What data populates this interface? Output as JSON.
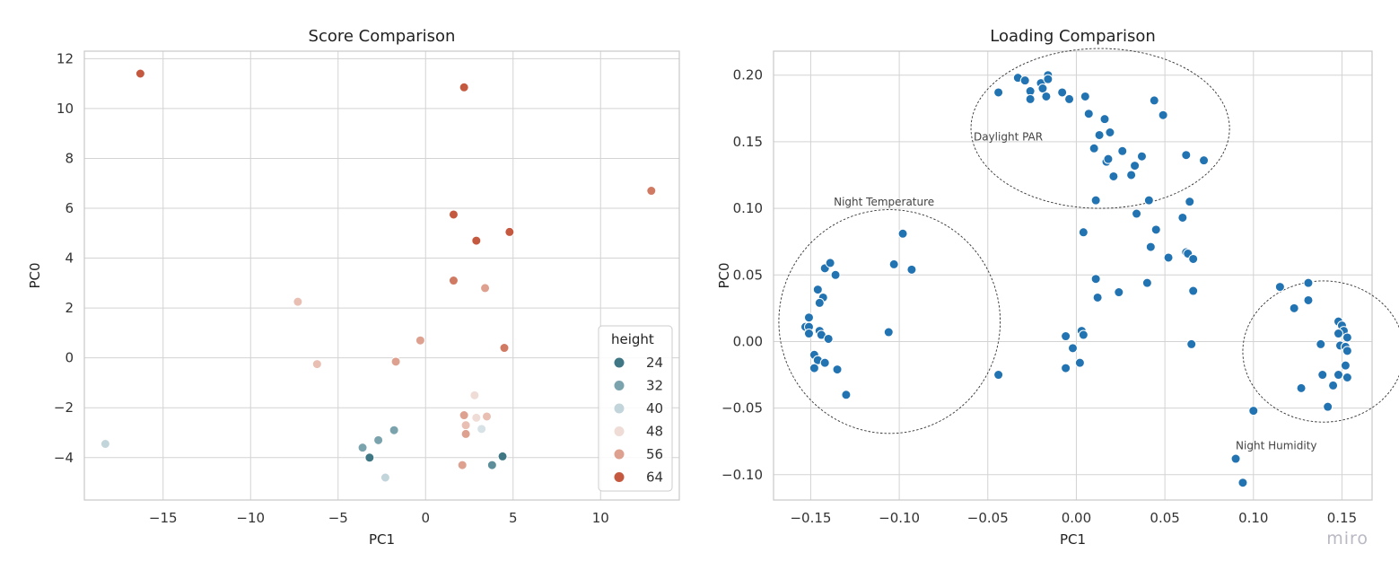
{
  "watermark": "miro",
  "chart_data": [
    {
      "type": "scatter",
      "title": "Score Comparison",
      "xlabel": "PC1",
      "ylabel": "PC0",
      "xlim": [
        -19.5,
        14.5
      ],
      "ylim": [
        -5.7,
        12.3
      ],
      "xticks": [
        -15,
        -10,
        -5,
        0,
        5,
        10
      ],
      "yticks": [
        -4,
        -2,
        0,
        2,
        4,
        6,
        8,
        10,
        12
      ],
      "grid": true,
      "legend": {
        "title": "height",
        "placement": "lower-right",
        "entries": [
          {
            "label": "24",
            "color": "#3f7785"
          },
          {
            "label": "32",
            "color": "#7aa3ad"
          },
          {
            "label": "40",
            "color": "#c2d5da"
          },
          {
            "label": "48",
            "color": "#efdcd6"
          },
          {
            "label": "56",
            "color": "#dea08f"
          },
          {
            "label": "64",
            "color": "#c5593f"
          }
        ]
      },
      "points": [
        {
          "x": -16.3,
          "y": 11.4,
          "color": "#c5593f"
        },
        {
          "x": 2.2,
          "y": 10.85,
          "color": "#c5593f"
        },
        {
          "x": 12.9,
          "y": 6.7,
          "color": "#d07a63"
        },
        {
          "x": 1.6,
          "y": 5.75,
          "color": "#c5593f"
        },
        {
          "x": 2.9,
          "y": 4.7,
          "color": "#c5593f"
        },
        {
          "x": 4.8,
          "y": 5.05,
          "color": "#c5593f"
        },
        {
          "x": 1.6,
          "y": 3.1,
          "color": "#d07a63"
        },
        {
          "x": 3.4,
          "y": 2.8,
          "color": "#dea08f"
        },
        {
          "x": -7.3,
          "y": 2.25,
          "color": "#e8bfb2"
        },
        {
          "x": -0.3,
          "y": 0.7,
          "color": "#dea08f"
        },
        {
          "x": 4.5,
          "y": 0.4,
          "color": "#d07a63"
        },
        {
          "x": -6.2,
          "y": -0.25,
          "color": "#e8bfb2"
        },
        {
          "x": -1.7,
          "y": -0.15,
          "color": "#dea08f"
        },
        {
          "x": 2.8,
          "y": -1.5,
          "color": "#efdcd6"
        },
        {
          "x": 2.2,
          "y": -2.3,
          "color": "#dea08f"
        },
        {
          "x": 2.9,
          "y": -2.4,
          "color": "#efdcd6"
        },
        {
          "x": 3.5,
          "y": -2.35,
          "color": "#e8bfb2"
        },
        {
          "x": 2.3,
          "y": -2.7,
          "color": "#e8bfb2"
        },
        {
          "x": 2.3,
          "y": -3.05,
          "color": "#dea08f"
        },
        {
          "x": 3.2,
          "y": -2.85,
          "color": "#d6e2e5"
        },
        {
          "x": -18.3,
          "y": -3.45,
          "color": "#c2d5da"
        },
        {
          "x": -1.8,
          "y": -2.9,
          "color": "#7aa3ad"
        },
        {
          "x": -2.7,
          "y": -3.3,
          "color": "#7aa3ad"
        },
        {
          "x": -3.6,
          "y": -3.6,
          "color": "#7aa3ad"
        },
        {
          "x": -3.2,
          "y": -4.0,
          "color": "#3f7785"
        },
        {
          "x": -2.3,
          "y": -4.8,
          "color": "#c2d5da"
        },
        {
          "x": 2.1,
          "y": -4.3,
          "color": "#dea08f"
        },
        {
          "x": 3.8,
          "y": -4.3,
          "color": "#5e8e9a"
        },
        {
          "x": 4.4,
          "y": -3.95,
          "color": "#3f7785"
        }
      ]
    },
    {
      "type": "scatter",
      "title": "Loading Comparison",
      "xlabel": "PC1",
      "ylabel": "PC0",
      "xlim": [
        -0.171,
        0.167
      ],
      "ylim": [
        -0.119,
        0.218
      ],
      "xticks": [
        -0.15,
        -0.1,
        -0.05,
        0.0,
        0.05,
        0.1,
        0.15
      ],
      "xtick_labels": [
        "−0.15",
        "−0.10",
        "−0.05",
        "0.00",
        "0.05",
        "0.10",
        "0.15"
      ],
      "yticks": [
        -0.1,
        -0.05,
        0.0,
        0.05,
        0.1,
        0.15,
        0.2
      ],
      "ytick_labels": [
        "−0.10",
        "−0.05",
        "0.00",
        "0.05",
        "0.10",
        "0.15",
        "0.20"
      ],
      "grid": true,
      "point_color": "#2273b1",
      "annotations": [
        {
          "text": "Night Temperature",
          "x": -0.137,
          "y": 0.102,
          "rx": 0.0625,
          "ry": 0.084,
          "cx": -0.1055,
          "cy": 0.015
        },
        {
          "text": "Daylight PAR",
          "x": -0.058,
          "y": 0.151,
          "rx": 0.073,
          "ry": 0.06,
          "cx": 0.0135,
          "cy": 0.16
        },
        {
          "text": "Night Humidity",
          "x": 0.09,
          "y": -0.081,
          "rx": 0.0455,
          "ry": 0.053,
          "cx": 0.1395,
          "cy": -0.0075
        }
      ],
      "points": [
        [
          -0.044,
          0.187
        ],
        [
          -0.033,
          0.198
        ],
        [
          -0.029,
          0.196
        ],
        [
          -0.026,
          0.188
        ],
        [
          -0.026,
          0.182
        ],
        [
          -0.02,
          0.194
        ],
        [
          -0.019,
          0.19
        ],
        [
          -0.017,
          0.184
        ],
        [
          -0.016,
          0.2
        ],
        [
          -0.016,
          0.197
        ],
        [
          -0.008,
          0.187
        ],
        [
          -0.004,
          0.182
        ],
        [
          0.005,
          0.184
        ],
        [
          0.007,
          0.171
        ],
        [
          0.01,
          0.145
        ],
        [
          0.013,
          0.155
        ],
        [
          0.016,
          0.167
        ],
        [
          0.017,
          0.135
        ],
        [
          0.018,
          0.137
        ],
        [
          0.019,
          0.157
        ],
        [
          0.021,
          0.124
        ],
        [
          0.026,
          0.143
        ],
        [
          0.031,
          0.125
        ],
        [
          0.033,
          0.132
        ],
        [
          0.037,
          0.139
        ],
        [
          0.044,
          0.181
        ],
        [
          0.049,
          0.17
        ],
        [
          0.011,
          0.106
        ],
        [
          0.034,
          0.096
        ],
        [
          0.041,
          0.106
        ],
        [
          0.062,
          0.14
        ],
        [
          0.072,
          0.136
        ],
        [
          0.064,
          0.105
        ],
        [
          0.004,
          0.082
        ],
        [
          0.045,
          0.084
        ],
        [
          0.042,
          0.071
        ],
        [
          0.06,
          0.093
        ],
        [
          0.062,
          0.067
        ],
        [
          0.063,
          0.066
        ],
        [
          0.052,
          0.063
        ],
        [
          0.066,
          0.062
        ],
        [
          0.011,
          0.047
        ],
        [
          0.04,
          0.044
        ],
        [
          0.012,
          0.033
        ],
        [
          0.024,
          0.037
        ],
        [
          0.066,
          0.038
        ],
        [
          0.003,
          0.008
        ],
        [
          0.004,
          0.005
        ],
        [
          -0.006,
          0.004
        ],
        [
          -0.002,
          -0.005
        ],
        [
          -0.006,
          -0.02
        ],
        [
          0.002,
          -0.016
        ],
        [
          -0.044,
          -0.025
        ],
        [
          0.065,
          -0.002
        ],
        [
          -0.098,
          0.081
        ],
        [
          -0.103,
          0.058
        ],
        [
          -0.093,
          0.054
        ],
        [
          -0.142,
          0.055
        ],
        [
          -0.139,
          0.059
        ],
        [
          -0.136,
          0.05
        ],
        [
          -0.146,
          0.039
        ],
        [
          -0.143,
          0.033
        ],
        [
          -0.145,
          0.029
        ],
        [
          -0.151,
          0.018
        ],
        [
          -0.153,
          0.011
        ],
        [
          -0.151,
          0.011
        ],
        [
          -0.151,
          0.006
        ],
        [
          -0.145,
          0.008
        ],
        [
          -0.144,
          0.005
        ],
        [
          -0.14,
          0.002
        ],
        [
          -0.106,
          0.007
        ],
        [
          -0.148,
          -0.01
        ],
        [
          -0.146,
          -0.014
        ],
        [
          -0.142,
          -0.016
        ],
        [
          -0.148,
          -0.02
        ],
        [
          -0.135,
          -0.021
        ],
        [
          -0.13,
          -0.04
        ],
        [
          0.115,
          0.041
        ],
        [
          0.131,
          0.044
        ],
        [
          0.123,
          0.025
        ],
        [
          0.131,
          0.031
        ],
        [
          0.148,
          0.015
        ],
        [
          0.15,
          0.012
        ],
        [
          0.151,
          0.008
        ],
        [
          0.148,
          0.006
        ],
        [
          0.153,
          0.003
        ],
        [
          0.138,
          -0.002
        ],
        [
          0.149,
          -0.003
        ],
        [
          0.152,
          -0.004
        ],
        [
          0.153,
          -0.007
        ],
        [
          0.152,
          -0.018
        ],
        [
          0.139,
          -0.025
        ],
        [
          0.148,
          -0.025
        ],
        [
          0.153,
          -0.027
        ],
        [
          0.145,
          -0.033
        ],
        [
          0.127,
          -0.035
        ],
        [
          0.142,
          -0.049
        ],
        [
          0.1,
          -0.052
        ],
        [
          0.09,
          -0.088
        ],
        [
          0.094,
          -0.106
        ]
      ]
    }
  ]
}
